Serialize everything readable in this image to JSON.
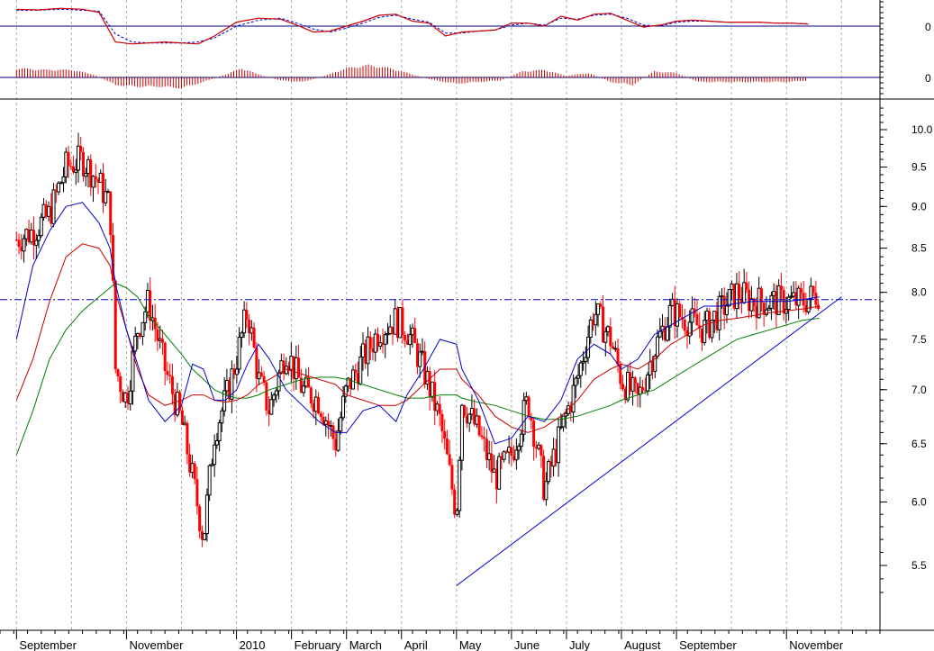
{
  "chart_data": [
    {
      "panel": "oscillator",
      "type": "line",
      "zero_label": "0",
      "series": [
        {
          "color": "#cc0000",
          "style": "solid"
        },
        {
          "color": "#0000cc",
          "style": "dashed"
        }
      ],
      "ylim": [
        -1,
        1
      ],
      "x_months": [
        0,
        0.4,
        0.8,
        1.2,
        1.5,
        1.8,
        2.1,
        2.4,
        2.7,
        3.0,
        3.3,
        3.6,
        4.0,
        4.4,
        4.8,
        5.1,
        5.4,
        5.7,
        6.0,
        6.3,
        6.6,
        6.9,
        7.2,
        7.5,
        7.8,
        8.1,
        8.4,
        8.7,
        9.0,
        9.3,
        9.6,
        9.9,
        10.2,
        10.5,
        10.8,
        11.1,
        11.4,
        11.7,
        12.0,
        12.3,
        12.6,
        12.9,
        13.2,
        13.5,
        13.8,
        14.1,
        14.4
      ],
      "line_a": [
        0.85,
        0.82,
        0.9,
        0.85,
        0.7,
        -0.8,
        -0.9,
        -0.85,
        -0.8,
        -0.85,
        -0.9,
        -0.5,
        0.2,
        0.4,
        0.35,
        0.05,
        -0.3,
        -0.25,
        0.0,
        0.25,
        0.55,
        0.6,
        0.25,
        0.15,
        -0.5,
        -0.3,
        -0.25,
        -0.2,
        0.15,
        0.15,
        0.0,
        0.5,
        0.3,
        0.6,
        0.65,
        0.3,
        -0.05,
        0.05,
        0.25,
        0.3,
        0.25,
        0.2,
        0.2,
        0.2,
        0.15,
        0.15,
        0.1
      ],
      "line_b": [
        0.8,
        0.8,
        0.85,
        0.8,
        0.75,
        -0.4,
        -0.8,
        -0.85,
        -0.85,
        -0.85,
        -0.8,
        -0.6,
        0.0,
        0.3,
        0.4,
        0.15,
        -0.15,
        -0.3,
        -0.1,
        0.15,
        0.45,
        0.55,
        0.35,
        0.2,
        -0.35,
        -0.35,
        -0.25,
        -0.2,
        0.05,
        0.15,
        0.05,
        0.4,
        0.35,
        0.55,
        0.6,
        0.4,
        0.05,
        0.0,
        0.2,
        0.25,
        0.25,
        0.2,
        0.2,
        0.2,
        0.15,
        0.15,
        0.12
      ]
    },
    {
      "panel": "histogram",
      "type": "bar",
      "zero_label": "0",
      "color": "#cc0000",
      "ylim": [
        -1,
        1
      ],
      "x_months": [
        0,
        0.5,
        1.0,
        1.4,
        1.8,
        2.2,
        2.6,
        3.0,
        3.4,
        3.8,
        4.1,
        4.4,
        4.8,
        5.2,
        5.6,
        6.0,
        6.4,
        6.8,
        7.2,
        7.6,
        8.0,
        8.4,
        8.8,
        9.2,
        9.6,
        10.0,
        10.4,
        10.8,
        11.2,
        11.6,
        12.0,
        12.4,
        12.8,
        13.2,
        13.6,
        14.0,
        14.4
      ],
      "values": [
        0.6,
        0.5,
        0.5,
        0.2,
        -0.5,
        -0.6,
        -0.6,
        -0.7,
        -0.3,
        0.2,
        0.6,
        0.2,
        -0.2,
        -0.3,
        0.1,
        0.6,
        0.8,
        0.6,
        0.2,
        -0.2,
        -0.4,
        -0.3,
        -0.2,
        0.4,
        0.5,
        0.1,
        0.3,
        -0.3,
        -0.5,
        0.4,
        0.3,
        -0.3,
        -0.3,
        -0.3,
        -0.3,
        -0.3,
        -0.2
      ]
    },
    {
      "panel": "price",
      "type": "candlestick",
      "xlabel": "",
      "ylabel": "",
      "ylim": [
        5.1,
        10.4
      ],
      "yscale": "log",
      "y_ticks": [
        "10.0",
        "9.5",
        "9.0",
        "8.5",
        "8.0",
        "7.5",
        "7.0",
        "6.5",
        "6.0",
        "5.5"
      ],
      "y_tick_values": [
        10.0,
        9.5,
        9.0,
        8.5,
        8.0,
        7.5,
        7.0,
        6.5,
        6.0,
        5.5
      ],
      "months": [
        "September",
        "November",
        "2010",
        "February",
        "March",
        "April",
        "May",
        "June",
        "July",
        "August",
        "September",
        "November"
      ],
      "month_positions": [
        0,
        2,
        4,
        5,
        6,
        7,
        8,
        9,
        10,
        11,
        12,
        14
      ],
      "x_range_months": [
        -0.3,
        15.7
      ],
      "grid": "vertical dotted at month starts",
      "up_color": "#000000",
      "down_color": "#ff0000",
      "closes_x_months": [
        0,
        0.3,
        0.6,
        0.9,
        1.2,
        1.5,
        1.7,
        1.8,
        2.0,
        2.2,
        2.4,
        2.7,
        3.0,
        3.2,
        3.4,
        3.6,
        3.8,
        4.0,
        4.2,
        4.4,
        4.6,
        4.9,
        5.2,
        5.5,
        5.8,
        6.0,
        6.3,
        6.6,
        6.9,
        7.1,
        7.4,
        7.7,
        8.0,
        8.1,
        8.4,
        8.7,
        9.0,
        9.3,
        9.6,
        9.9,
        10.2,
        10.5,
        10.8,
        11.0,
        11.3,
        11.6,
        11.9,
        12.2,
        12.5,
        12.8,
        13.1,
        13.4,
        13.7,
        14.0,
        14.3,
        14.6
      ],
      "closes": [
        8.6,
        8.7,
        8.9,
        9.5,
        9.6,
        9.3,
        9.0,
        7.2,
        6.9,
        7.6,
        7.9,
        7.2,
        6.7,
        6.2,
        5.7,
        6.6,
        6.9,
        7.3,
        7.8,
        7.1,
        6.8,
        7.4,
        7.0,
        6.9,
        6.5,
        7.0,
        7.3,
        7.6,
        7.7,
        7.6,
        7.2,
        6.7,
        5.9,
        6.9,
        6.6,
        6.2,
        6.4,
        6.9,
        6.1,
        6.6,
        7.1,
        7.8,
        7.5,
        7.1,
        6.9,
        7.4,
        7.8,
        7.7,
        7.6,
        7.8,
        8.0,
        7.9,
        7.9,
        7.9,
        7.9,
        8.0
      ],
      "ma_short": {
        "color": "#0000cc",
        "values": [
          7.5,
          8.3,
          8.7,
          9.0,
          9.05,
          8.8,
          8.5,
          8.1,
          7.6,
          7.25,
          6.9,
          6.7,
          6.85,
          7.25,
          7.2,
          6.9,
          6.9,
          7.0,
          7.25,
          7.45,
          7.3,
          7.0,
          6.85,
          6.7,
          6.6,
          6.6,
          6.8,
          6.85,
          6.7,
          6.95,
          7.2,
          7.5,
          7.45,
          7.2,
          6.9,
          6.5,
          6.55,
          6.75,
          6.7,
          6.9,
          7.3,
          7.45,
          7.35,
          7.2,
          7.3,
          7.55,
          7.65,
          7.75,
          7.85,
          7.85,
          7.88,
          7.9,
          7.9,
          7.9,
          7.92,
          7.95
        ]
      },
      "ma_medium": {
        "color": "#cc0000",
        "values": [
          6.9,
          7.3,
          7.9,
          8.4,
          8.55,
          8.5,
          8.3,
          8.0,
          7.6,
          7.2,
          6.95,
          6.85,
          6.9,
          6.95,
          6.95,
          6.9,
          6.88,
          6.9,
          6.95,
          7.05,
          7.1,
          7.2,
          7.15,
          7.1,
          7.05,
          6.95,
          6.9,
          6.85,
          6.85,
          6.9,
          7.05,
          7.2,
          7.2,
          7.1,
          6.95,
          6.75,
          6.65,
          6.6,
          6.65,
          6.75,
          6.9,
          7.1,
          7.2,
          7.25,
          7.2,
          7.3,
          7.45,
          7.55,
          7.65,
          7.7,
          7.72,
          7.75,
          7.78,
          7.8,
          7.82,
          7.85
        ]
      },
      "ma_long": {
        "color": "#008000",
        "values": [
          6.4,
          6.8,
          7.3,
          7.6,
          7.8,
          7.95,
          8.05,
          8.1,
          8.05,
          7.95,
          7.75,
          7.55,
          7.35,
          7.2,
          7.1,
          7.0,
          6.95,
          6.92,
          6.92,
          6.95,
          7.0,
          7.05,
          7.1,
          7.12,
          7.12,
          7.1,
          7.05,
          7.0,
          6.95,
          6.92,
          6.92,
          6.95,
          6.95,
          6.92,
          6.88,
          6.85,
          6.8,
          6.75,
          6.72,
          6.72,
          6.75,
          6.8,
          6.85,
          6.9,
          6.95,
          7.0,
          7.1,
          7.2,
          7.3,
          7.4,
          7.5,
          7.55,
          7.6,
          7.65,
          7.7,
          7.72
        ]
      },
      "resistance_line": {
        "value": 7.92,
        "color": "#0000cc",
        "style": "dash-dot"
      },
      "trendline": {
        "x_start": 8.0,
        "y_start": 5.35,
        "x_end": 15.0,
        "y_end": 7.95,
        "color": "#0000cc"
      }
    }
  ]
}
